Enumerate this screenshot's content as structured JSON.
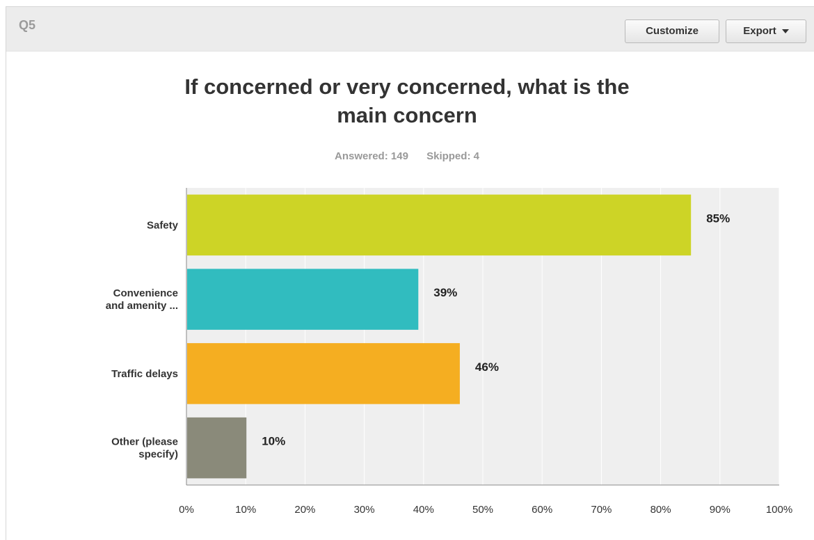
{
  "header": {
    "question_number": "Q5",
    "customize_label": "Customize",
    "export_label": "Export"
  },
  "stats": {
    "answered": "Answered: 149",
    "skipped": "Skipped: 4"
  },
  "colors": {
    "plot_bg": "#efefef",
    "axis": "#888888"
  },
  "chart_data": {
    "type": "bar",
    "orientation": "horizontal",
    "title_lines": [
      "If concerned or very concerned, what is the",
      "main concern"
    ],
    "categories": [
      [
        "Safety"
      ],
      [
        "Convenience",
        "and amenity ..."
      ],
      [
        "Traffic delays"
      ],
      [
        "Other (please",
        "specify)"
      ]
    ],
    "values": [
      85,
      39,
      46,
      10
    ],
    "value_labels": [
      "85%",
      "39%",
      "46%",
      "10%"
    ],
    "colors": [
      "#cdd426",
      "#31bcbf",
      "#f5ae21",
      "#8a8a7a"
    ],
    "xlim": [
      0,
      100
    ],
    "xticks": [
      "0%",
      "10%",
      "20%",
      "30%",
      "40%",
      "50%",
      "60%",
      "70%",
      "80%",
      "90%",
      "100%"
    ],
    "grid": true
  }
}
